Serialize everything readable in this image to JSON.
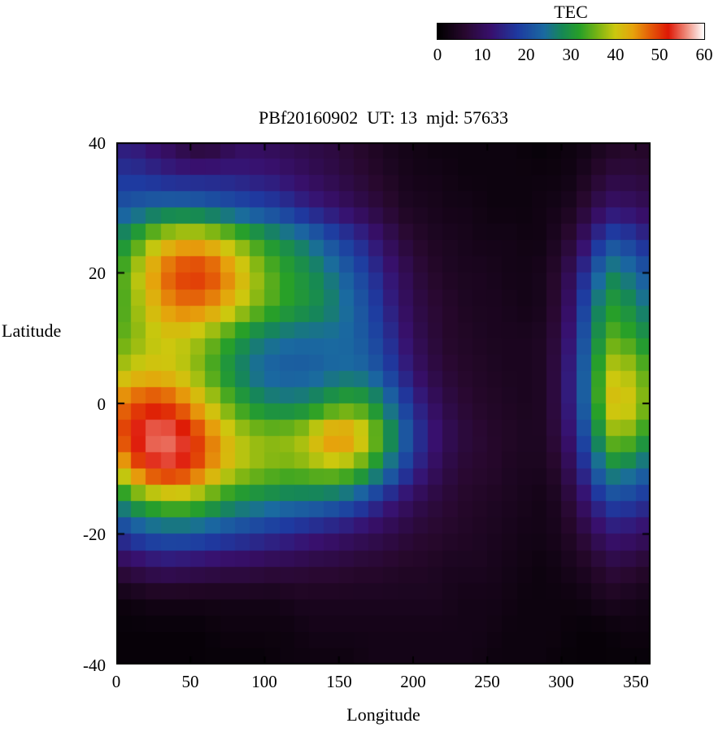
{
  "chart_data": {
    "type": "heatmap",
    "title": "PBf20160902  UT: 13  mjd: 57633",
    "xlabel": "Longitude",
    "ylabel": "Latitude",
    "x_range": [
      0,
      360
    ],
    "y_range": [
      -40,
      40
    ],
    "x_ticks": [
      0,
      50,
      100,
      150,
      200,
      250,
      300,
      350
    ],
    "y_ticks": [
      40,
      20,
      0,
      -20,
      -40
    ],
    "grid": false,
    "colorbar": {
      "title": "TEC",
      "min": 0,
      "max": 60,
      "ticks": [
        0,
        10,
        20,
        30,
        40,
        50,
        60
      ],
      "position": "top-right-horizontal"
    },
    "palette_stops": [
      [
        0,
        "#000000"
      ],
      [
        6,
        "#28082e"
      ],
      [
        12,
        "#38106e"
      ],
      [
        18,
        "#1e3aa0"
      ],
      [
        24,
        "#1a6aa0"
      ],
      [
        28,
        "#168855"
      ],
      [
        32,
        "#28a028"
      ],
      [
        36,
        "#78b414"
      ],
      [
        40,
        "#ccc80e"
      ],
      [
        44,
        "#e6a30c"
      ],
      [
        48,
        "#e45a08"
      ],
      [
        52,
        "#de1806"
      ],
      [
        56,
        "#ef8a7a"
      ],
      [
        60,
        "#ffffff"
      ]
    ],
    "lats": [
      40,
      35,
      30,
      25,
      20,
      15,
      10,
      5,
      0,
      -5,
      -10,
      -15,
      -20,
      -25,
      -30,
      -35,
      -40
    ],
    "lons": [
      0,
      10,
      20,
      30,
      40,
      50,
      60,
      70,
      80,
      90,
      100,
      110,
      120,
      130,
      140,
      150,
      160,
      170,
      180,
      190,
      200,
      210,
      220,
      230,
      240,
      250,
      260,
      270,
      280,
      290,
      300,
      310,
      320,
      330,
      340,
      350
    ],
    "values_tecu": [
      [
        13,
        13,
        12,
        10,
        9,
        6,
        6,
        7,
        10,
        10,
        10,
        9,
        9,
        8,
        8,
        7,
        6,
        5,
        4,
        3,
        3,
        2,
        2,
        2,
        2,
        2,
        2,
        2,
        1,
        1,
        2,
        2,
        3,
        4,
        5,
        5
      ],
      [
        17,
        17,
        16,
        15,
        14,
        14,
        14,
        14,
        14,
        13,
        13,
        12,
        11,
        10,
        9,
        8,
        7,
        6,
        5,
        4,
        3,
        3,
        3,
        2,
        2,
        2,
        2,
        2,
        2,
        2,
        2,
        3,
        5,
        7,
        8,
        7
      ],
      [
        21,
        22,
        23,
        24,
        24,
        24,
        23,
        22,
        21,
        20,
        19,
        18,
        16,
        14,
        13,
        11,
        10,
        8,
        7,
        5,
        4,
        4,
        3,
        3,
        3,
        2,
        2,
        2,
        2,
        3,
        3,
        5,
        8,
        11,
        12,
        10
      ],
      [
        28,
        31,
        36,
        40,
        42,
        43,
        42,
        40,
        37,
        34,
        31,
        29,
        27,
        25,
        22,
        19,
        17,
        14,
        11,
        8,
        6,
        5,
        4,
        4,
        3,
        3,
        3,
        3,
        2,
        3,
        5,
        8,
        14,
        19,
        21,
        16
      ],
      [
        32,
        37,
        42,
        47,
        49,
        51,
        50,
        48,
        44,
        40,
        36,
        33,
        31,
        29,
        27,
        24,
        21,
        18,
        14,
        11,
        8,
        6,
        5,
        4,
        4,
        4,
        3,
        3,
        3,
        4,
        7,
        12,
        20,
        26,
        28,
        22
      ],
      [
        32,
        36,
        40,
        44,
        46,
        47,
        46,
        44,
        41,
        38,
        35,
        33,
        31,
        30,
        28,
        26,
        23,
        20,
        16,
        12,
        9,
        7,
        6,
        5,
        4,
        4,
        4,
        3,
        3,
        4,
        8,
        14,
        24,
        30,
        32,
        26
      ],
      [
        34,
        36,
        38,
        40,
        40,
        39,
        37,
        34,
        31,
        28,
        26,
        25,
        24,
        24,
        24,
        24,
        23,
        21,
        18,
        14,
        10,
        8,
        6,
        5,
        5,
        4,
        4,
        4,
        4,
        5,
        9,
        16,
        26,
        33,
        36,
        30
      ],
      [
        38,
        40,
        41,
        41,
        40,
        38,
        35,
        31,
        28,
        25,
        23,
        22,
        22,
        22,
        23,
        24,
        24,
        23,
        20,
        16,
        12,
        9,
        7,
        6,
        5,
        5,
        4,
        4,
        4,
        5,
        10,
        17,
        28,
        37,
        42,
        35
      ],
      [
        46,
        48,
        50,
        50,
        48,
        45,
        41,
        37,
        33,
        30,
        28,
        27,
        27,
        28,
        30,
        32,
        33,
        31,
        27,
        21,
        16,
        12,
        9,
        7,
        6,
        5,
        5,
        4,
        4,
        5,
        10,
        17,
        28,
        38,
        45,
        37
      ],
      [
        48,
        52,
        55,
        56,
        55,
        52,
        48,
        44,
        40,
        38,
        37,
        37,
        38,
        40,
        45,
        47,
        45,
        40,
        33,
        26,
        19,
        14,
        11,
        8,
        7,
        6,
        5,
        5,
        4,
        5,
        9,
        15,
        25,
        33,
        40,
        32
      ],
      [
        40,
        46,
        51,
        53,
        53,
        51,
        47,
        43,
        40,
        38,
        37,
        36,
        36,
        37,
        38,
        38,
        36,
        32,
        27,
        21,
        16,
        12,
        9,
        7,
        6,
        6,
        5,
        4,
        4,
        4,
        7,
        12,
        20,
        27,
        29,
        24
      ],
      [
        27,
        31,
        34,
        36,
        37,
        36,
        34,
        31,
        29,
        28,
        27,
        26,
        25,
        25,
        24,
        23,
        21,
        18,
        15,
        12,
        10,
        8,
        7,
        6,
        5,
        5,
        4,
        4,
        3,
        3,
        5,
        9,
        14,
        18,
        20,
        17
      ],
      [
        17,
        19,
        21,
        22,
        22,
        22,
        21,
        20,
        19,
        18,
        17,
        16,
        15,
        14,
        13,
        12,
        11,
        10,
        9,
        8,
        7,
        6,
        6,
        5,
        5,
        4,
        4,
        3,
        3,
        3,
        4,
        6,
        9,
        12,
        13,
        11
      ],
      [
        8,
        9,
        10,
        11,
        11,
        10,
        10,
        9,
        9,
        9,
        8,
        8,
        8,
        7,
        7,
        7,
        6,
        6,
        6,
        5,
        5,
        5,
        4,
        4,
        4,
        4,
        3,
        3,
        2,
        2,
        3,
        4,
        5,
        7,
        8,
        6
      ],
      [
        2,
        2,
        3,
        3,
        3,
        3,
        3,
        3,
        3,
        3,
        3,
        3,
        4,
        4,
        4,
        4,
        4,
        4,
        4,
        4,
        4,
        4,
        4,
        3,
        3,
        3,
        3,
        2,
        2,
        2,
        2,
        2,
        3,
        4,
        4,
        3
      ],
      [
        1,
        1,
        1,
        1,
        1,
        1,
        1,
        2,
        2,
        2,
        2,
        2,
        2,
        3,
        3,
        3,
        3,
        3,
        3,
        3,
        3,
        3,
        3,
        3,
        3,
        3,
        2,
        2,
        2,
        2,
        2,
        1,
        1,
        1,
        2,
        2
      ],
      [
        1,
        1,
        1,
        1,
        1,
        1,
        1,
        1,
        1,
        1,
        1,
        2,
        2,
        2,
        2,
        2,
        2,
        3,
        3,
        3,
        3,
        3,
        3,
        3,
        3,
        2,
        2,
        2,
        2,
        2,
        1,
        1,
        1,
        1,
        1,
        1
      ]
    ]
  }
}
